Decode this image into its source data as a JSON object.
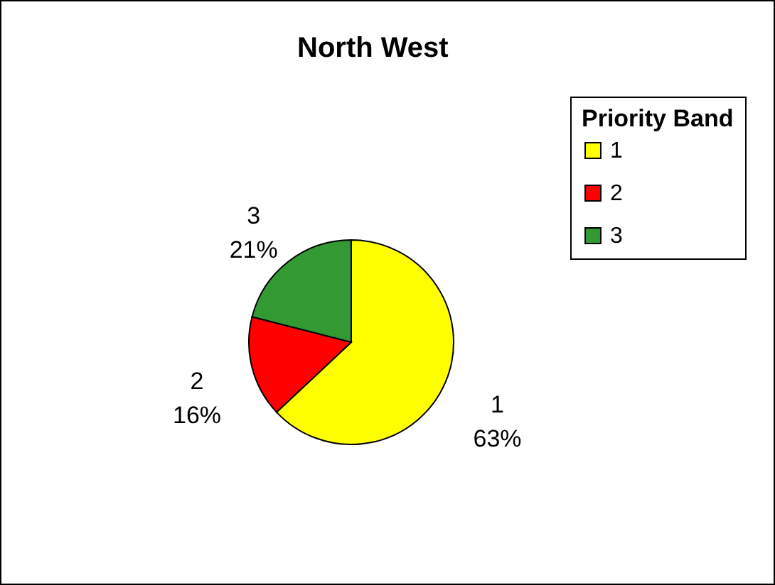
{
  "chart_data": {
    "type": "pie",
    "title": "North West",
    "legend_title": "Priority Band",
    "legend": "right",
    "categories": [
      "1",
      "2",
      "3"
    ],
    "values": [
      63,
      16,
      21
    ],
    "value_labels": [
      "63%",
      "16%",
      "21%"
    ],
    "colors": [
      "#ffff00",
      "#ff0000",
      "#339933"
    ]
  }
}
